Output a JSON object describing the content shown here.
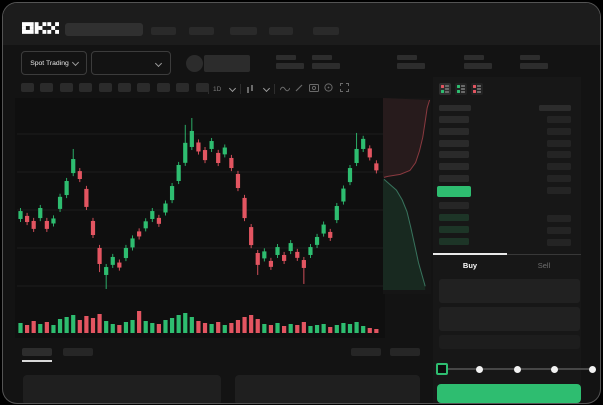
{
  "header": {
    "logo_text": "OKX",
    "search_value": "",
    "nav_item_count": 5
  },
  "trading_bar": {
    "market_selector_label": "Spot Trading",
    "pair_dropdown_value": "",
    "stat_placeholder_count": 5
  },
  "chart_toolbar": {
    "interval_label": "1D",
    "timeframe_button_count": 10,
    "icons": [
      "candles-dropdown-icon",
      "wave-line-icon",
      "pencil-icon",
      "camera-icon",
      "circle-icon",
      "fullscreen-icon"
    ]
  },
  "order_book": {
    "view_icons": [
      "book-all-icon",
      "book-bids-icon",
      "book-asks-icon"
    ],
    "ask_row_count": 6,
    "bid_row_count": 4,
    "last_price_color": "#2ebd70"
  },
  "trade_panel": {
    "tabs": [
      {
        "label": "Buy",
        "active": true
      },
      {
        "label": "Sell",
        "active": false
      }
    ],
    "field_count": 3,
    "slider": {
      "stops": 5,
      "active_stop": 0
    },
    "submit_color": "#2ebd70"
  },
  "bottom_bar": {
    "tab_count": 2,
    "right_block_count": 2,
    "panel_count": 2
  },
  "colors": {
    "up": "#2ebd70",
    "down": "#e35561",
    "bg": "#131313"
  },
  "chart_data": {
    "type": "candlestick",
    "title": "",
    "ylim": [
      0,
      100
    ],
    "grid": true,
    "note_scale": "normalized price 0-100 (no numeric axis labels visible)",
    "candles": [
      [
        43.9,
        50.0,
        42.2,
        48.3
      ],
      [
        45.6,
        47.3,
        40.5,
        42.2
      ],
      [
        42.8,
        44.5,
        36.7,
        38.4
      ],
      [
        44.4,
        51.7,
        42.7,
        50.0
      ],
      [
        42.8,
        44.5,
        36.7,
        38.4
      ],
      [
        41.4,
        45.9,
        39.7,
        44.2
      ],
      [
        49.5,
        57.9,
        47.8,
        56.2
      ],
      [
        57.2,
        66.7,
        55.5,
        65.0
      ],
      [
        69.4,
        82.8,
        67.7,
        77.2
      ],
      [
        70.5,
        72.2,
        64.4,
        66.1
      ],
      [
        60.6,
        62.3,
        48.9,
        50.6
      ],
      [
        42.8,
        44.5,
        33.3,
        35.0
      ],
      [
        27.8,
        29.5,
        14.4,
        18.9
      ],
      [
        12.8,
        18.9,
        5.0,
        17.2
      ],
      [
        18.4,
        24.5,
        16.7,
        22.8
      ],
      [
        19.7,
        21.4,
        15.2,
        16.9
      ],
      [
        22.2,
        29.5,
        20.5,
        27.8
      ],
      [
        28.1,
        34.8,
        26.4,
        33.1
      ],
      [
        37.0,
        38.7,
        32.5,
        34.2
      ],
      [
        38.7,
        44.3,
        37.0,
        42.6
      ],
      [
        43.9,
        50.0,
        42.2,
        48.3
      ],
      [
        44.5,
        46.2,
        39.5,
        41.2
      ],
      [
        47.5,
        54.2,
        45.8,
        52.5
      ],
      [
        54.4,
        63.9,
        52.7,
        62.2
      ],
      [
        65.0,
        75.6,
        63.3,
        73.9
      ],
      [
        75.1,
        96.2,
        73.4,
        86.2
      ],
      [
        83.9,
        100,
        82.2,
        92.8
      ],
      [
        86.4,
        88.1,
        79.7,
        81.4
      ],
      [
        82.2,
        83.9,
        74.9,
        76.6
      ],
      [
        82.8,
        88.9,
        81.1,
        87.2
      ],
      [
        80.6,
        82.3,
        73.3,
        75.0
      ],
      [
        79.8,
        85.3,
        78.1,
        83.6
      ],
      [
        77.8,
        79.5,
        70.5,
        72.2
      ],
      [
        68.9,
        70.6,
        59.4,
        61.1
      ],
      [
        55.6,
        57.3,
        42.7,
        44.4
      ],
      [
        39.4,
        41.1,
        27.7,
        29.4
      ],
      [
        25.0,
        26.7,
        12.8,
        18.4
      ],
      [
        22.0,
        27.6,
        20.3,
        25.9
      ],
      [
        20.6,
        22.3,
        15.6,
        17.3
      ],
      [
        23.9,
        30.0,
        22.2,
        28.3
      ],
      [
        23.9,
        25.6,
        18.9,
        20.6
      ],
      [
        26.1,
        32.2,
        24.4,
        30.5
      ],
      [
        25.6,
        27.3,
        20.6,
        22.3
      ],
      [
        21.1,
        22.8,
        7.8,
        16.7
      ],
      [
        23.9,
        30.0,
        22.2,
        28.3
      ],
      [
        29.5,
        35.6,
        27.8,
        33.9
      ],
      [
        35.8,
        42.5,
        34.1,
        40.8
      ],
      [
        36.7,
        38.4,
        31.7,
        33.4
      ],
      [
        43.3,
        52.8,
        41.6,
        51.1
      ],
      [
        53.6,
        62.5,
        51.9,
        60.8
      ],
      [
        64.4,
        73.9,
        62.7,
        72.2
      ],
      [
        75.0,
        91.7,
        73.3,
        82.8
      ],
      [
        82.8,
        90.1,
        81.1,
        88.4
      ],
      [
        83.1,
        84.8,
        76.4,
        78.1
      ],
      [
        74.8,
        76.5,
        69.2,
        70.9
      ]
    ],
    "volume": [
      10,
      8,
      12,
      9,
      11,
      8,
      14,
      16,
      18,
      13,
      17,
      15,
      19,
      12,
      9,
      8,
      11,
      13,
      22,
      12,
      10,
      9,
      13,
      15,
      18,
      20,
      16,
      12,
      10,
      9,
      11,
      8,
      10,
      13,
      16,
      18,
      14,
      9,
      8,
      10,
      7,
      9,
      8,
      11,
      7,
      8,
      9,
      6,
      8,
      10,
      9,
      11,
      7,
      5,
      4
    ],
    "depth": {
      "asks": [
        [
          97,
          1
        ],
        [
          92,
          5
        ],
        [
          88,
          12
        ],
        [
          83,
          20
        ],
        [
          76,
          27
        ],
        [
          68,
          33
        ],
        [
          56,
          37
        ],
        [
          36,
          39
        ],
        [
          10,
          40
        ],
        [
          2,
          40.5
        ]
      ],
      "bids": [
        [
          2,
          41.5
        ],
        [
          14,
          44
        ],
        [
          28,
          47
        ],
        [
          40,
          52
        ],
        [
          50,
          58
        ],
        [
          58,
          66
        ],
        [
          66,
          75
        ],
        [
          74,
          84
        ],
        [
          82,
          91
        ],
        [
          88,
          96
        ]
      ]
    }
  }
}
